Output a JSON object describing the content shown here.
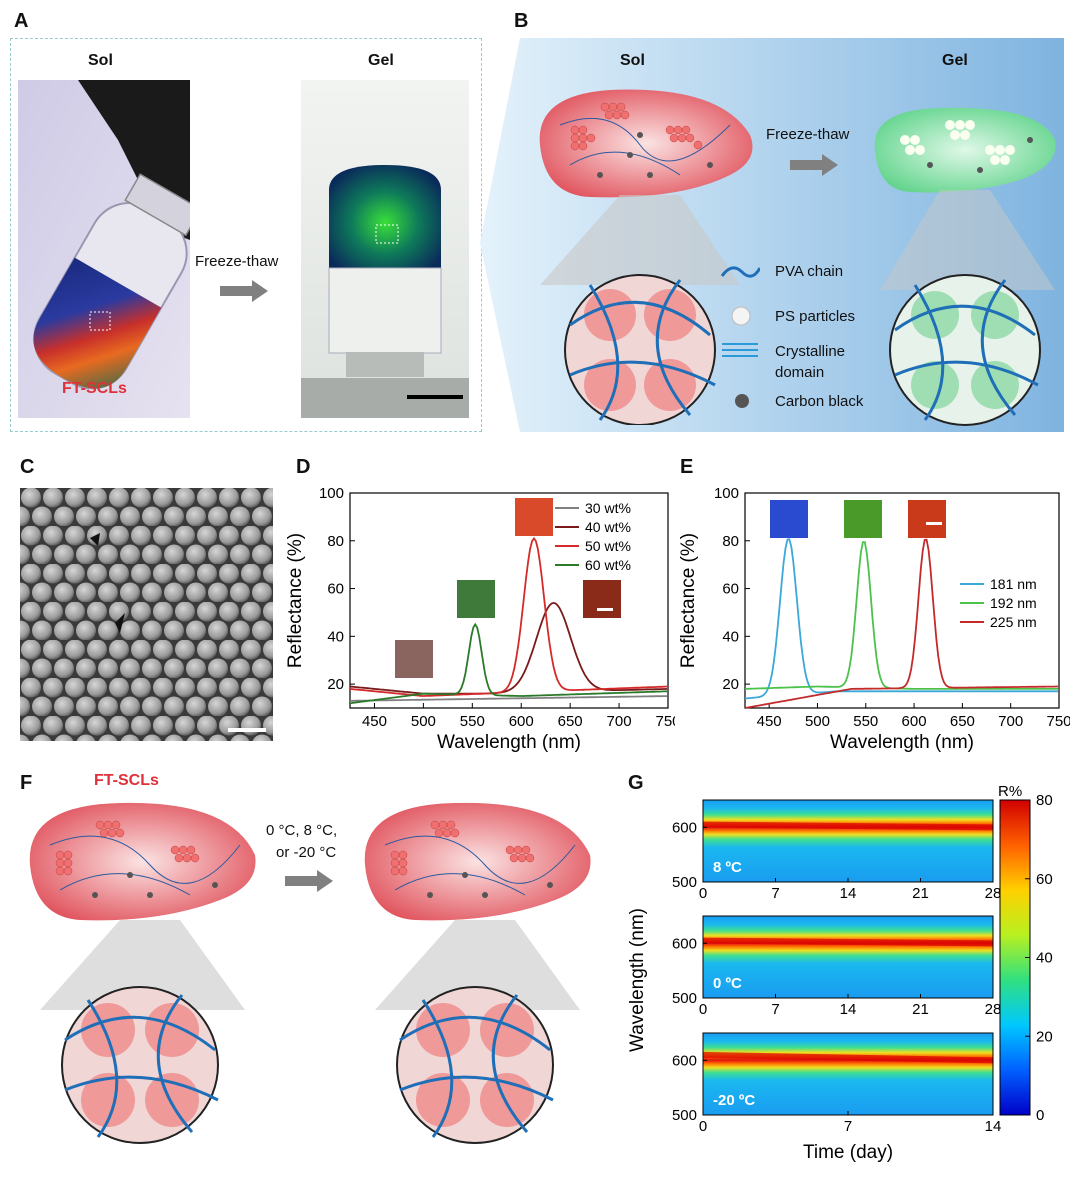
{
  "panels": {
    "A": {
      "label": "A",
      "sol_title": "Sol",
      "gel_title": "Gel",
      "arrow_text": "Freeze-thaw",
      "sample_label": "FT-SCLs"
    },
    "B": {
      "label": "B",
      "sol_title": "Sol",
      "gel_title": "Gel",
      "arrow_text": "Freeze-thaw",
      "legend": [
        "PVA chain",
        "PS particles",
        "Crystalline domain",
        "Carbon black"
      ]
    },
    "C": {
      "label": "C"
    },
    "D": {
      "label": "D"
    },
    "E": {
      "label": "E"
    },
    "F": {
      "label": "F",
      "sample_label": "FT-SCLs",
      "condition_line1": "0 °C, 8 °C,",
      "condition_line2": "or -20 °C"
    },
    "G": {
      "label": "G"
    }
  },
  "colors": {
    "pva": "#1f6fb8",
    "sol_red": "#e0505a",
    "gel_green": "#5fd38a",
    "arrow_gray": "#808080",
    "panelB_bg": "#9fc9ea"
  },
  "chart_data": [
    {
      "id": "D",
      "type": "line",
      "xlabel": "Wavelength (nm)",
      "ylabel": "Reflectance (%)",
      "xlim": [
        425,
        750
      ],
      "ylim": [
        10,
        100
      ],
      "xticks": [
        450,
        500,
        550,
        600,
        650,
        700,
        750
      ],
      "yticks": [
        20,
        40,
        60,
        80,
        100
      ],
      "legend_position": "top-right",
      "series": [
        {
          "name": "30 wt%",
          "color": "#808080",
          "peak": null,
          "baseline": [
            [
              425,
              13
            ],
            [
              750,
              15
            ]
          ]
        },
        {
          "name": "40 wt%",
          "color": "#7a1a1a",
          "peak": {
            "x": 633,
            "y": 54,
            "width": 40
          },
          "baseline": [
            [
              425,
              19
            ],
            [
              500,
              16
            ],
            [
              560,
              16
            ],
            [
              750,
              18
            ]
          ]
        },
        {
          "name": "50 wt%",
          "color": "#d42a2a",
          "peak": {
            "x": 613,
            "y": 81,
            "width": 24
          },
          "baseline": [
            [
              425,
              18
            ],
            [
              500,
              15
            ],
            [
              560,
              16
            ],
            [
              750,
              19
            ]
          ]
        },
        {
          "name": "60 wt%",
          "color": "#2a7a2a",
          "peak": {
            "x": 553,
            "y": 45,
            "width": 15
          },
          "baseline": [
            [
              425,
              12
            ],
            [
              500,
              16
            ],
            [
              600,
              15
            ],
            [
              750,
              17
            ]
          ]
        }
      ]
    },
    {
      "id": "E",
      "type": "line",
      "xlabel": "Wavelength (nm)",
      "ylabel": "Reflectance (%)",
      "xlim": [
        425,
        750
      ],
      "ylim": [
        10,
        100
      ],
      "xticks": [
        450,
        500,
        550,
        600,
        650,
        700,
        750
      ],
      "yticks": [
        20,
        40,
        60,
        80,
        100
      ],
      "legend_position": "right",
      "series": [
        {
          "name": "181 nm",
          "color": "#3aa8d8",
          "peak": {
            "x": 470,
            "y": 81,
            "width": 20
          },
          "baseline": [
            [
              425,
              14
            ],
            [
              520,
              17
            ],
            [
              750,
              17
            ]
          ]
        },
        {
          "name": "192 nm",
          "color": "#4cc24c",
          "peak": {
            "x": 548,
            "y": 80,
            "width": 17
          },
          "baseline": [
            [
              425,
              18
            ],
            [
              500,
              19
            ],
            [
              600,
              18
            ],
            [
              750,
              18
            ]
          ]
        },
        {
          "name": "225 nm",
          "color": "#c42a2a",
          "peak": {
            "x": 612,
            "y": 81,
            "width": 17
          },
          "baseline": [
            [
              425,
              10
            ],
            [
              480,
              14
            ],
            [
              535,
              18
            ],
            [
              750,
              19
            ]
          ]
        }
      ]
    },
    {
      "id": "G",
      "type": "heatmap",
      "ylabel": "Wavelength (nm)",
      "xlabel": "Time (day)",
      "colorbar": {
        "title": "R%",
        "range": [
          0,
          80
        ],
        "ticks": [
          0,
          20,
          40,
          60,
          80
        ]
      },
      "subplots": [
        {
          "label": "8 ºC",
          "xlim": [
            0,
            28
          ],
          "xticks": [
            0,
            7,
            14,
            21,
            28
          ],
          "ylim": [
            500,
            650
          ],
          "yticks": [
            500,
            600
          ],
          "peak_wavelength": [
            605,
            600
          ],
          "peak_R": 80
        },
        {
          "label": "0 ºC",
          "xlim": [
            0,
            28
          ],
          "xticks": [
            0,
            7,
            14,
            21,
            28
          ],
          "ylim": [
            500,
            650
          ],
          "yticks": [
            500,
            600
          ],
          "peak_wavelength": [
            605,
            600
          ],
          "peak_R": 80
        },
        {
          "label": "-20 ºC",
          "xlim": [
            0,
            14
          ],
          "xticks": [
            0,
            7,
            14
          ],
          "ylim": [
            500,
            650
          ],
          "yticks": [
            500,
            600
          ],
          "peak_wavelength": [
            610,
            600
          ],
          "peak_R": 80
        }
      ]
    }
  ]
}
